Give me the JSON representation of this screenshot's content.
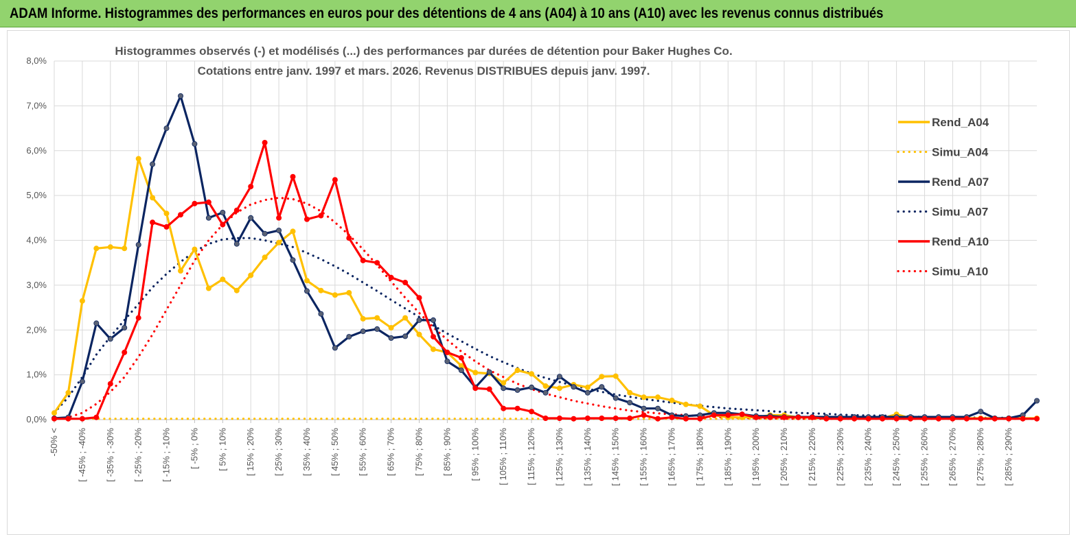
{
  "header": {
    "title": "ADAM Informe. Histogrammes des performances en euros pour des détentions de 4 ans (A04) à 10 ans (A10) avec les revenus connus distribués"
  },
  "colors": {
    "banner": "#92d36e",
    "A04": "#ffc000",
    "A07": "#0b2561",
    "A10": "#ff0000",
    "marker_A07": "#5a6275",
    "grid": "#d9d9d9"
  },
  "chart_data": {
    "type": "line",
    "title": "Histogrammes observés (-) et modélisés (...) des performances par durées de détention pour Baker Hughes Co.",
    "subtitle": "Cotations entre janv. 1997 et mars. 2026. Revenus DISTRIBUES depuis janv. 1997.",
    "xlabel": "",
    "ylabel": "",
    "ylim": [
      0,
      8
    ],
    "y_ticks": [
      "0,0%",
      "1,0%",
      "2,0%",
      "3,0%",
      "4,0%",
      "5,0%",
      "6,0%",
      "7,0%",
      "8,0%"
    ],
    "x_labels": [
      "-50% <",
      "[ -45% ; -40%",
      "[ -35% ; -30%",
      "[ -25% ; -20%",
      "[ -15% ; -10%",
      "[ -5% ; 0%",
      "[ 5% ; 10%",
      "[ 15% ; 20%",
      "[ 25% ; 30%",
      "[ 35% ; 40%",
      "[ 45% ; 50%",
      "[ 55% ; 60%",
      "[ 65% ; 70%",
      "[ 75% ; 80%",
      "[ 85% ; 90%",
      "[ 95% ; 100%",
      "[ 105% ; 110%",
      "[ 115% ; 120%",
      "[ 125% ; 130%",
      "[ 135% ; 140%",
      "[ 145% ; 150%",
      "[ 155% ; 160%",
      "[ 165% ; 170%",
      "[ 175% ; 180%",
      "[ 185% ; 190%",
      "[ 195% ; 200%",
      "[ 205% ; 210%",
      "[ 215% ; 220%",
      "[ 225% ; 230%",
      "[ 235% ; 240%",
      "[ 245% ; 250%",
      "[ 255% ; 260%",
      "[ 265% ; 270%",
      "[ 275% ; 280%",
      "[ 285% ; 290%"
    ],
    "x_count": 71,
    "legend": [
      "Rend_A04",
      "Simu_A04",
      "Rend_A07",
      "Simu_A07",
      "Rend_A10",
      "Simu_A10"
    ],
    "legend_position": "right",
    "series": [
      {
        "name": "Rend_A04",
        "style": "solid",
        "color": "#ffc000",
        "values": [
          0.15,
          0.6,
          2.65,
          3.82,
          3.85,
          3.82,
          5.82,
          4.95,
          4.6,
          3.32,
          3.8,
          2.93,
          3.13,
          2.88,
          3.22,
          3.62,
          3.95,
          4.2,
          3.1,
          2.88,
          2.78,
          2.83,
          2.25,
          2.27,
          2.05,
          2.27,
          1.9,
          1.57,
          1.5,
          1.2,
          1.05,
          1.03,
          0.82,
          1.1,
          1.02,
          0.75,
          0.7,
          0.78,
          0.72,
          0.96,
          0.97,
          0.6,
          0.5,
          0.5,
          0.43,
          0.34,
          0.3,
          0.1,
          0.05,
          0.05,
          0.05,
          0.1,
          0.1,
          0.05,
          0.05,
          0.05,
          0.05,
          0.05,
          0.05,
          0.03,
          0.12,
          0.03,
          0.03,
          0.03,
          0.03,
          0.03,
          0.03,
          0.03,
          0.03,
          0.03,
          0.03
        ]
      },
      {
        "name": "Simu_A04",
        "style": "dotted",
        "color": "#ffc000",
        "values": [
          0.02,
          0.02,
          0.02,
          0.02,
          0.02,
          0.02,
          0.02,
          0.02,
          0.02,
          0.02,
          0.02,
          0.02,
          0.02,
          0.02,
          0.02,
          0.02,
          0.02,
          0.02,
          0.02,
          0.02,
          0.02,
          0.02,
          0.02,
          0.02,
          0.02,
          0.02,
          0.02,
          0.02,
          0.02,
          0.02,
          0.02,
          0.02,
          0.02,
          0.02,
          0.02,
          0.02,
          0.02,
          0.02,
          0.02,
          0.02,
          0.02,
          0.02,
          0.02,
          0.02,
          0.02,
          0.02,
          0.02,
          0.02,
          0.02,
          0.02,
          0.02,
          0.02,
          0.02,
          0.02,
          0.02,
          0.02,
          0.02,
          0.02,
          0.02,
          0.02,
          0.02,
          0.02,
          0.02,
          0.02,
          0.02,
          0.02,
          0.02,
          0.02,
          0.02,
          0.02,
          0.02
        ]
      },
      {
        "name": "Rend_A07",
        "style": "solid",
        "color": "#0b2561",
        "values": [
          0.03,
          0.05,
          0.85,
          2.15,
          1.8,
          2.05,
          3.9,
          5.7,
          6.5,
          7.22,
          6.15,
          4.5,
          4.62,
          3.92,
          4.5,
          4.15,
          4.22,
          3.56,
          2.87,
          2.36,
          1.6,
          1.85,
          1.97,
          2.02,
          1.82,
          1.86,
          2.22,
          2.22,
          1.3,
          1.1,
          0.72,
          1.06,
          0.7,
          0.66,
          0.72,
          0.6,
          0.96,
          0.73,
          0.6,
          0.73,
          0.48,
          0.38,
          0.25,
          0.25,
          0.1,
          0.08,
          0.1,
          0.15,
          0.15,
          0.12,
          0.08,
          0.08,
          0.06,
          0.06,
          0.06,
          0.06,
          0.06,
          0.06,
          0.06,
          0.06,
          0.06,
          0.06,
          0.06,
          0.06,
          0.06,
          0.06,
          0.18,
          0.03,
          0.03,
          0.1,
          0.42
        ]
      },
      {
        "name": "Simu_A07",
        "style": "dotted",
        "color": "#0b2561",
        "values": [
          0.15,
          0.5,
          0.95,
          1.45,
          1.85,
          2.22,
          2.58,
          2.95,
          3.25,
          3.52,
          3.75,
          3.92,
          4.02,
          4.05,
          4.05,
          4.0,
          3.93,
          3.85,
          3.72,
          3.58,
          3.42,
          3.25,
          3.06,
          2.87,
          2.67,
          2.48,
          2.29,
          2.1,
          1.92,
          1.75,
          1.58,
          1.42,
          1.28,
          1.15,
          1.03,
          0.93,
          0.84,
          0.76,
          0.69,
          0.62,
          0.56,
          0.51,
          0.46,
          0.42,
          0.38,
          0.34,
          0.31,
          0.28,
          0.25,
          0.23,
          0.21,
          0.19,
          0.17,
          0.15,
          0.14,
          0.13,
          0.11,
          0.1,
          0.09,
          0.09,
          0.08,
          0.07,
          0.06,
          0.06,
          0.05,
          0.05,
          0.04,
          0.04,
          0.04,
          0.03,
          0.03
        ]
      },
      {
        "name": "Rend_A10",
        "style": "solid",
        "color": "#ff0000",
        "values": [
          0.02,
          0.02,
          0.02,
          0.05,
          0.8,
          1.5,
          2.27,
          4.4,
          4.3,
          4.57,
          4.82,
          4.85,
          4.35,
          4.67,
          5.2,
          6.18,
          4.5,
          5.42,
          4.47,
          4.55,
          5.35,
          4.05,
          3.55,
          3.5,
          3.17,
          3.06,
          2.72,
          1.85,
          1.5,
          1.38,
          0.7,
          0.68,
          0.25,
          0.25,
          0.18,
          0.03,
          0.03,
          0.02,
          0.03,
          0.03,
          0.03,
          0.03,
          0.1,
          0.02,
          0.05,
          0.02,
          0.02,
          0.1,
          0.1,
          0.12,
          0.05,
          0.05,
          0.05,
          0.05,
          0.05,
          0.02,
          0.02,
          0.02,
          0.02,
          0.02,
          0.02,
          0.02,
          0.02,
          0.02,
          0.02,
          0.02,
          0.02,
          0.02,
          0.02,
          0.02,
          0.02
        ]
      },
      {
        "name": "Simu_A10",
        "style": "dotted",
        "color": "#ff0000",
        "values": [
          0.02,
          0.05,
          0.15,
          0.35,
          0.62,
          0.95,
          1.4,
          1.9,
          2.45,
          3.0,
          3.55,
          4.0,
          4.35,
          4.62,
          4.8,
          4.9,
          4.95,
          4.92,
          4.82,
          4.65,
          4.4,
          4.12,
          3.8,
          3.45,
          3.08,
          2.72,
          2.38,
          2.06,
          1.78,
          1.52,
          1.3,
          1.1,
          0.95,
          0.8,
          0.68,
          0.58,
          0.5,
          0.42,
          0.36,
          0.3,
          0.25,
          0.2,
          0.17,
          0.14,
          0.12,
          0.1,
          0.08,
          0.06,
          0.05,
          0.04,
          0.03,
          0.03,
          0.02,
          0.02,
          0.02,
          0.02,
          0.02,
          0.02,
          0.02,
          0.02,
          0.02,
          0.02,
          0.02,
          0.02,
          0.02,
          0.02,
          0.02,
          0.02,
          0.02,
          0.02,
          0.02
        ]
      }
    ]
  }
}
